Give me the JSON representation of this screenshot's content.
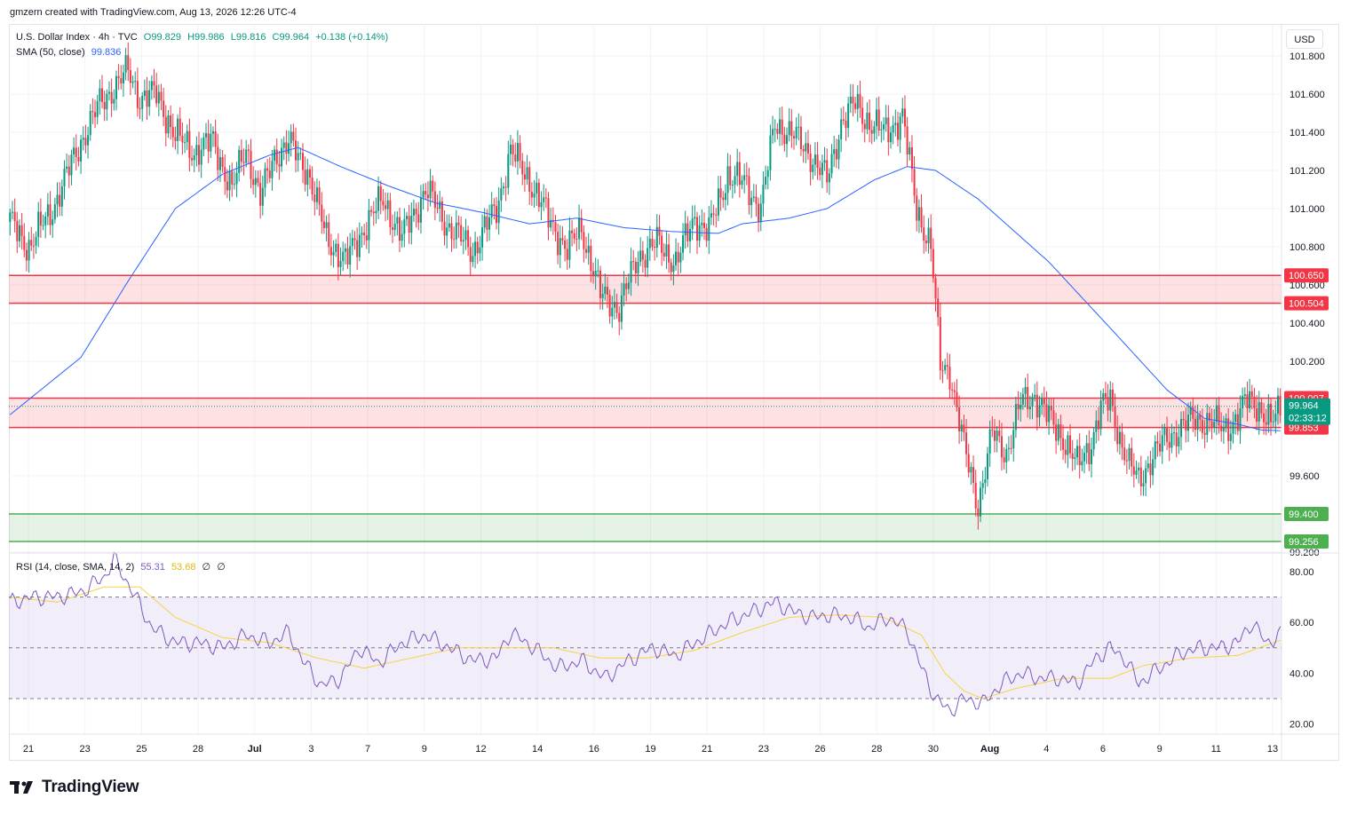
{
  "attribution": "gmzern created with TradingView.com, Aug 13, 2026 12:26 UTC-4",
  "legend": {
    "symbol": "U.S. Dollar Index · 4h · TVC",
    "open": "O99.829",
    "high": "H99.986",
    "low": "L99.816",
    "close": "C99.964",
    "change": "+0.138 (+0.14%)",
    "sma_label": "SMA (50, close)",
    "sma_value": "99.836",
    "rsi_label": "RSI (14, close, SMA, 14, 2)",
    "rsi_value": "55.31",
    "rsi_sma_value": "53.68",
    "rsi_extra1": "∅",
    "rsi_extra2": "∅"
  },
  "currency": "USD",
  "logo_text": "TradingView",
  "colors": {
    "up": "#089981",
    "down": "#f23645",
    "sma": "#2962ff",
    "rsi": "#7e57c2",
    "rsi_sma": "#f5d442",
    "zone_red": "#f23645",
    "zone_green": "#4caf50"
  },
  "chart_data": {
    "type": "candlestick",
    "ylim": [
      99.2,
      101.93
    ],
    "y_ticks": [
      "101.800",
      "101.600",
      "101.400",
      "101.200",
      "101.000",
      "100.800",
      "100.600",
      "100.400",
      "100.200",
      "99.600",
      "99.200"
    ],
    "x_tick_labels": [
      "21",
      "23",
      "25",
      "28",
      "Jul",
      "3",
      "7",
      "9",
      "12",
      "14",
      "16",
      "19",
      "21",
      "23",
      "26",
      "28",
      "30",
      "Aug",
      "4",
      "6",
      "9",
      "11",
      "13"
    ],
    "zones": [
      {
        "low": 100.504,
        "high": 100.65,
        "color": "red",
        "low_label": "100.504",
        "high_label": "100.650"
      },
      {
        "low": 99.853,
        "high": 100.007,
        "color": "red",
        "low_label": "99.853",
        "high_label": "100.007"
      },
      {
        "low": 99.256,
        "high": 99.4,
        "color": "green",
        "low_label": "99.256",
        "high_label": "99.400"
      }
    ],
    "last_price": {
      "value": 99.964,
      "label": "99.964",
      "countdown": "02:33:12"
    },
    "close_path": [
      [
        0,
        100.93
      ],
      [
        8,
        100.8
      ],
      [
        18,
        101.0
      ],
      [
        30,
        101.35
      ],
      [
        38,
        101.55
      ],
      [
        50,
        101.72
      ],
      [
        55,
        101.58
      ],
      [
        62,
        101.6
      ],
      [
        70,
        101.38
      ],
      [
        78,
        101.3
      ],
      [
        86,
        101.35
      ],
      [
        94,
        101.1
      ],
      [
        100,
        101.32
      ],
      [
        106,
        101.05
      ],
      [
        112,
        101.28
      ],
      [
        118,
        101.34
      ],
      [
        126,
        101.2
      ],
      [
        134,
        100.85
      ],
      [
        142,
        100.72
      ],
      [
        150,
        100.9
      ],
      [
        158,
        101.05
      ],
      [
        166,
        100.85
      ],
      [
        176,
        101.1
      ],
      [
        186,
        100.9
      ],
      [
        196,
        100.78
      ],
      [
        206,
        101.0
      ],
      [
        212,
        101.3
      ],
      [
        220,
        101.15
      ],
      [
        228,
        100.95
      ],
      [
        236,
        100.78
      ],
      [
        242,
        100.9
      ],
      [
        250,
        100.55
      ],
      [
        258,
        100.48
      ],
      [
        266,
        100.75
      ],
      [
        274,
        100.82
      ],
      [
        282,
        100.72
      ],
      [
        290,
        100.95
      ],
      [
        296,
        100.88
      ],
      [
        304,
        101.18
      ],
      [
        312,
        101.12
      ],
      [
        318,
        101.0
      ],
      [
        324,
        101.45
      ],
      [
        332,
        101.38
      ],
      [
        338,
        101.3
      ],
      [
        346,
        101.15
      ],
      [
        352,
        101.45
      ],
      [
        358,
        101.55
      ],
      [
        364,
        101.45
      ],
      [
        370,
        101.4
      ],
      [
        378,
        101.48
      ],
      [
        384,
        101.0
      ],
      [
        390,
        100.8
      ],
      [
        394,
        100.18
      ],
      [
        398,
        100.15
      ],
      [
        404,
        99.75
      ],
      [
        410,
        99.45
      ],
      [
        416,
        99.82
      ],
      [
        422,
        99.72
      ],
      [
        428,
        99.98
      ],
      [
        434,
        100.02
      ],
      [
        440,
        99.9
      ],
      [
        446,
        99.8
      ],
      [
        452,
        99.65
      ],
      [
        458,
        99.78
      ],
      [
        462,
        99.95
      ],
      [
        466,
        100.0
      ],
      [
        470,
        99.8
      ],
      [
        474,
        99.65
      ],
      [
        478,
        99.58
      ],
      [
        484,
        99.7
      ],
      [
        490,
        99.8
      ],
      [
        496,
        99.85
      ],
      [
        502,
        99.9
      ],
      [
        508,
        99.88
      ],
      [
        514,
        99.85
      ],
      [
        520,
        99.9
      ],
      [
        524,
        100.0
      ],
      [
        528,
        99.98
      ],
      [
        534,
        99.86
      ],
      [
        538,
        99.964
      ]
    ],
    "sma_path": [
      [
        0,
        99.92
      ],
      [
        30,
        100.22
      ],
      [
        50,
        100.62
      ],
      [
        70,
        101.0
      ],
      [
        90,
        101.18
      ],
      [
        110,
        101.28
      ],
      [
        122,
        101.32
      ],
      [
        140,
        101.22
      ],
      [
        160,
        101.12
      ],
      [
        180,
        101.03
      ],
      [
        200,
        100.98
      ],
      [
        220,
        100.92
      ],
      [
        240,
        100.95
      ],
      [
        260,
        100.9
      ],
      [
        280,
        100.88
      ],
      [
        300,
        100.87
      ],
      [
        310,
        100.92
      ],
      [
        330,
        100.95
      ],
      [
        346,
        101.0
      ],
      [
        366,
        101.15
      ],
      [
        380,
        101.22
      ],
      [
        392,
        101.2
      ],
      [
        410,
        101.05
      ],
      [
        440,
        100.72
      ],
      [
        470,
        100.32
      ],
      [
        490,
        100.05
      ],
      [
        506,
        99.9
      ],
      [
        520,
        99.87
      ],
      [
        530,
        99.84
      ],
      [
        538,
        99.836
      ]
    ],
    "rsi": {
      "ylim": [
        16,
        87
      ],
      "ticks": [
        "80.00",
        "60.00",
        "40.00",
        "20.00"
      ],
      "band_upper": 70,
      "band_mid": 50,
      "band_lower": 30,
      "path": [
        [
          0,
          68
        ],
        [
          10,
          70
        ],
        [
          20,
          70
        ],
        [
          30,
          72
        ],
        [
          40,
          78
        ],
        [
          44,
          85
        ],
        [
          52,
          72
        ],
        [
          60,
          58
        ],
        [
          70,
          52
        ],
        [
          80,
          52
        ],
        [
          90,
          50
        ],
        [
          100,
          55
        ],
        [
          110,
          52
        ],
        [
          118,
          56
        ],
        [
          124,
          45
        ],
        [
          132,
          35
        ],
        [
          140,
          38
        ],
        [
          148,
          50
        ],
        [
          156,
          44
        ],
        [
          166,
          52
        ],
        [
          176,
          55
        ],
        [
          186,
          50
        ],
        [
          196,
          45
        ],
        [
          206,
          46
        ],
        [
          212,
          56
        ],
        [
          222,
          50
        ],
        [
          232,
          42
        ],
        [
          242,
          45
        ],
        [
          252,
          38
        ],
        [
          262,
          45
        ],
        [
          272,
          50
        ],
        [
          282,
          47
        ],
        [
          292,
          53
        ],
        [
          304,
          60
        ],
        [
          314,
          64
        ],
        [
          324,
          68
        ],
        [
          332,
          64
        ],
        [
          340,
          62
        ],
        [
          348,
          63
        ],
        [
          356,
          62
        ],
        [
          364,
          58
        ],
        [
          372,
          62
        ],
        [
          380,
          57
        ],
        [
          386,
          42
        ],
        [
          392,
          30
        ],
        [
          398,
          25
        ],
        [
          404,
          30
        ],
        [
          412,
          28
        ],
        [
          420,
          36
        ],
        [
          428,
          40
        ],
        [
          436,
          38
        ],
        [
          444,
          38
        ],
        [
          452,
          36
        ],
        [
          460,
          46
        ],
        [
          466,
          50
        ],
        [
          472,
          46
        ],
        [
          478,
          36
        ],
        [
          484,
          40
        ],
        [
          490,
          44
        ],
        [
          496,
          48
        ],
        [
          504,
          50
        ],
        [
          512,
          50
        ],
        [
          520,
          52
        ],
        [
          526,
          60
        ],
        [
          532,
          52
        ],
        [
          538,
          55
        ]
      ],
      "sma_path": [
        [
          0,
          70
        ],
        [
          20,
          68
        ],
        [
          40,
          74
        ],
        [
          55,
          74
        ],
        [
          70,
          62
        ],
        [
          90,
          54
        ],
        [
          110,
          52
        ],
        [
          130,
          46
        ],
        [
          150,
          42
        ],
        [
          170,
          46
        ],
        [
          190,
          50
        ],
        [
          210,
          50
        ],
        [
          230,
          50
        ],
        [
          250,
          46
        ],
        [
          270,
          46
        ],
        [
          290,
          49
        ],
        [
          310,
          56
        ],
        [
          330,
          62
        ],
        [
          350,
          63
        ],
        [
          370,
          62
        ],
        [
          386,
          55
        ],
        [
          396,
          40
        ],
        [
          404,
          33
        ],
        [
          412,
          30
        ],
        [
          426,
          34
        ],
        [
          446,
          38
        ],
        [
          466,
          38
        ],
        [
          480,
          43
        ],
        [
          500,
          46
        ],
        [
          520,
          47
        ],
        [
          538,
          53
        ]
      ]
    }
  }
}
